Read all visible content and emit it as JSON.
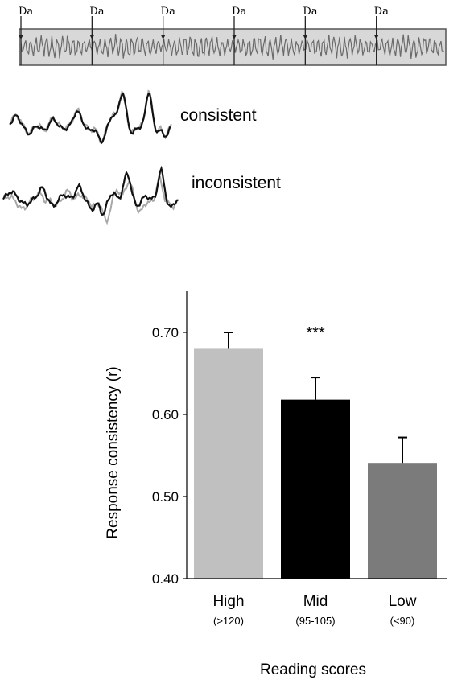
{
  "stimulus": {
    "marker_label": "Da",
    "marker_count": 6
  },
  "traces": {
    "consistent_label": "consistent",
    "inconsistent_label": "inconsistent"
  },
  "chart_data": {
    "type": "bar",
    "categories": [
      "High",
      "Mid",
      "Low"
    ],
    "category_sublabels": [
      "(>120)",
      "(95-105)",
      "(<90)"
    ],
    "values": [
      0.68,
      0.618,
      0.541
    ],
    "error_upper": [
      0.02,
      0.027,
      0.031
    ],
    "bar_colors": [
      "#c0c0c0",
      "#000000",
      "#7b7b7b"
    ],
    "ylabel": "Response consistency (r)",
    "xlabel": "Reading scores",
    "ylim": [
      0.4,
      0.75
    ],
    "yticks": [
      0.4,
      0.5,
      0.6,
      0.7
    ],
    "ytick_labels": [
      "0.40",
      "0.50",
      "0.60",
      "0.70"
    ],
    "annotation": "***",
    "annotation_category": "Mid"
  }
}
